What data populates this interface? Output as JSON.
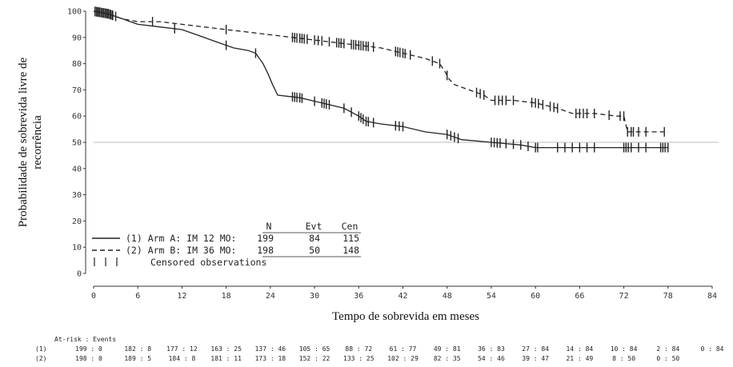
{
  "chart_data": {
    "type": "line",
    "subtype": "kaplan-meier",
    "ylabel": "Probabilidade de sobrevida livre de recorrência",
    "ylabel_lines": [
      "Probabilidade de sobrevida livre de",
      "recorrência"
    ],
    "xlabel": "Tempo de sobrevida em meses",
    "xlim": [
      0,
      84
    ],
    "ylim": [
      0,
      100
    ],
    "x_ticks": [
      0,
      6,
      12,
      18,
      24,
      30,
      36,
      42,
      48,
      54,
      60,
      66,
      72,
      78,
      84
    ],
    "y_ticks": [
      0,
      10,
      20,
      30,
      40,
      50,
      60,
      70,
      80,
      90,
      100
    ],
    "x_tick_labels": [
      "0",
      "6",
      "12",
      "18",
      "24",
      "30",
      "36",
      "42",
      "48",
      "54",
      "60",
      "66",
      "72",
      "78",
      "84"
    ],
    "y_tick_labels": [
      "0",
      "10",
      "20",
      "30",
      "40",
      "50",
      "60",
      "70",
      "80",
      "90",
      "100"
    ],
    "reference_line_y": 50,
    "grid": false,
    "series": [
      {
        "name": "Arm A: IM 12 MO",
        "line_style": "solid",
        "points": [
          [
            0,
            100
          ],
          [
            2,
            99
          ],
          [
            3,
            98
          ],
          [
            4,
            97
          ],
          [
            5,
            96
          ],
          [
            6,
            95
          ],
          [
            9,
            94
          ],
          [
            12,
            93
          ],
          [
            14,
            91
          ],
          [
            16,
            89
          ],
          [
            18,
            87
          ],
          [
            19,
            86
          ],
          [
            21,
            85
          ],
          [
            22,
            84
          ],
          [
            23,
            80
          ],
          [
            23.7,
            76
          ],
          [
            24.3,
            72
          ],
          [
            25,
            68
          ],
          [
            28,
            67
          ],
          [
            31,
            65
          ],
          [
            34,
            63
          ],
          [
            36,
            60
          ],
          [
            37,
            58
          ],
          [
            39,
            57
          ],
          [
            42,
            56
          ],
          [
            45,
            54
          ],
          [
            48,
            53
          ],
          [
            50,
            51
          ],
          [
            54,
            50
          ],
          [
            58,
            49
          ],
          [
            60,
            48
          ],
          [
            72,
            48
          ],
          [
            78,
            48
          ]
        ],
        "censor_times": [
          0.2,
          0.4,
          0.6,
          0.8,
          1,
          1.2,
          1.4,
          1.6,
          1.8,
          2,
          2.2,
          2.5,
          3,
          11,
          18,
          22,
          27,
          27.3,
          27.6,
          28,
          28.3,
          30,
          31,
          31.3,
          31.6,
          32,
          34,
          35,
          36,
          36.3,
          36.6,
          37,
          37.3,
          38,
          41,
          41.5,
          42,
          48,
          48.5,
          49,
          49.5,
          54,
          54.4,
          54.8,
          55.2,
          56,
          57,
          58,
          59,
          60,
          60.3,
          63,
          64,
          65,
          66,
          67,
          68,
          72,
          72.3,
          72.6,
          73,
          74,
          75,
          77,
          77.3,
          77.6,
          78
        ]
      },
      {
        "name": "Arm B: IM 36 MO",
        "line_style": "dashed",
        "points": [
          [
            0,
            100
          ],
          [
            2,
            99
          ],
          [
            3,
            98
          ],
          [
            4,
            97
          ],
          [
            6,
            96
          ],
          [
            9,
            96
          ],
          [
            12,
            95
          ],
          [
            15,
            94
          ],
          [
            18,
            93
          ],
          [
            21,
            92
          ],
          [
            24,
            91
          ],
          [
            27,
            90
          ],
          [
            30,
            89
          ],
          [
            33,
            88
          ],
          [
            36,
            87
          ],
          [
            39,
            86
          ],
          [
            42,
            84
          ],
          [
            45,
            82
          ],
          [
            47,
            80
          ],
          [
            47.7,
            77
          ],
          [
            48.3,
            74
          ],
          [
            49,
            72
          ],
          [
            50,
            71
          ],
          [
            52,
            69
          ],
          [
            53,
            68
          ],
          [
            54,
            66
          ],
          [
            57,
            66
          ],
          [
            60,
            65
          ],
          [
            63,
            63
          ],
          [
            65,
            61
          ],
          [
            68,
            61
          ],
          [
            71,
            60
          ],
          [
            72,
            60
          ],
          [
            72.5,
            54
          ],
          [
            78,
            54
          ]
        ],
        "censor_times": [
          0.2,
          0.4,
          0.6,
          0.8,
          1,
          1.2,
          1.4,
          1.6,
          1.8,
          2,
          2.3,
          2.6,
          8,
          18,
          27,
          27.3,
          27.6,
          28,
          28.3,
          28.6,
          29,
          30,
          30.5,
          31,
          32,
          33,
          33.3,
          33.6,
          34,
          35,
          35.3,
          35.6,
          36,
          36.3,
          36.6,
          37,
          37.3,
          38,
          41,
          41.3,
          41.6,
          42,
          42.3,
          43,
          46,
          47,
          48,
          52,
          52.5,
          53,
          54.5,
          55,
          55.5,
          56,
          57,
          59.5,
          60,
          60.4,
          61,
          62,
          62.5,
          63,
          65.5,
          66,
          66.5,
          67,
          68,
          70,
          71.5,
          72,
          72.5,
          73,
          73.3,
          74,
          75,
          77.5
        ]
      }
    ],
    "legend": {
      "headers": [
        "N",
        "Evt",
        "Cen"
      ],
      "rows": [
        {
          "label": "(1) Arm A: IM 12 MO:",
          "n": "199",
          "evt": "84",
          "cen": "115"
        },
        {
          "label": "(2) Arm B: IM 36 MO:",
          "n": "198",
          "evt": "50",
          "cen": "148"
        }
      ],
      "censored_label": "Censored observations",
      "placement": "bottom-left"
    },
    "at_risk": {
      "title": "At-risk : Events",
      "rows": [
        {
          "label": "(1)",
          "values": [
            "199 : 0",
            "182 : 8",
            "177 : 12",
            "163 : 25",
            "137 : 46",
            "105 : 65",
            "88 : 72",
            "61 : 77",
            "49 : 81",
            "36 : 83",
            "27 : 84",
            "14 : 84",
            "10 : 84",
            "2 : 84",
            "0 : 84"
          ]
        },
        {
          "label": "(2)",
          "values": [
            "198 : 0",
            "189 : 5",
            "184 : 8",
            "181 : 11",
            "173 : 18",
            "152 : 22",
            "133 : 25",
            "102 : 29",
            "82 : 35",
            "54 : 46",
            "39 : 47",
            "21 : 49",
            "8 : 50",
            "0 : 50",
            ""
          ]
        }
      ]
    }
  }
}
